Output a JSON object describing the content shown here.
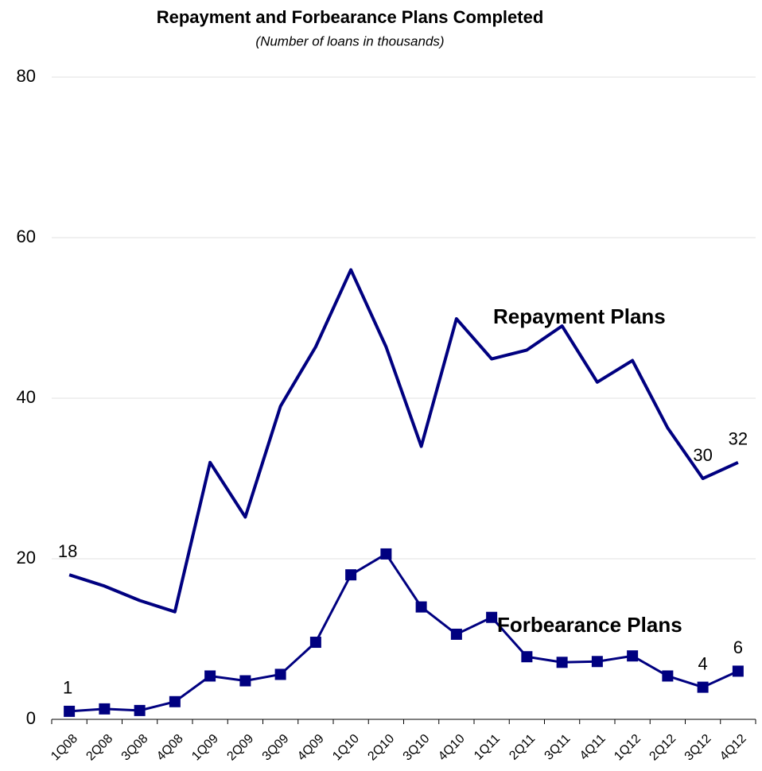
{
  "chart_data": {
    "type": "line",
    "title": "Repayment and Forbearance Plans Completed",
    "subtitle": "(Number of loans in thousands)",
    "categories": [
      "1Q08",
      "2Q08",
      "3Q08",
      "4Q08",
      "1Q09",
      "2Q09",
      "3Q09",
      "4Q09",
      "1Q10",
      "2Q10",
      "3Q10",
      "4Q10",
      "1Q11",
      "2Q11",
      "3Q11",
      "4Q11",
      "1Q12",
      "2Q12",
      "3Q12",
      "4Q12"
    ],
    "series": [
      {
        "name": "Repayment  Plans",
        "color": "#000080",
        "marker": false,
        "values": [
          18,
          16.6,
          14.8,
          13.4,
          32,
          25.2,
          39,
          46.4,
          56,
          46.4,
          34,
          49.9,
          44.9,
          46,
          49,
          42,
          44.7,
          36.3,
          30,
          32
        ],
        "value_labels": [
          "18",
          null,
          null,
          null,
          null,
          null,
          null,
          null,
          null,
          null,
          null,
          null,
          null,
          null,
          null,
          null,
          null,
          null,
          "30",
          "32"
        ]
      },
      {
        "name": "Forbearance Plans",
        "color": "#000080",
        "marker": true,
        "values": [
          1,
          1.3,
          1.1,
          2.2,
          5.4,
          4.8,
          5.6,
          9.6,
          18,
          20.6,
          14,
          10.6,
          12.7,
          7.8,
          7.1,
          7.2,
          7.9,
          5.4,
          4,
          6
        ],
        "value_labels": [
          "1",
          null,
          null,
          null,
          null,
          null,
          null,
          null,
          null,
          null,
          null,
          null,
          null,
          null,
          null,
          null,
          null,
          null,
          "4",
          "6"
        ]
      }
    ],
    "ylim": [
      0,
      80
    ],
    "yticks": [
      0,
      20,
      40,
      60,
      80
    ],
    "grid": true
  }
}
